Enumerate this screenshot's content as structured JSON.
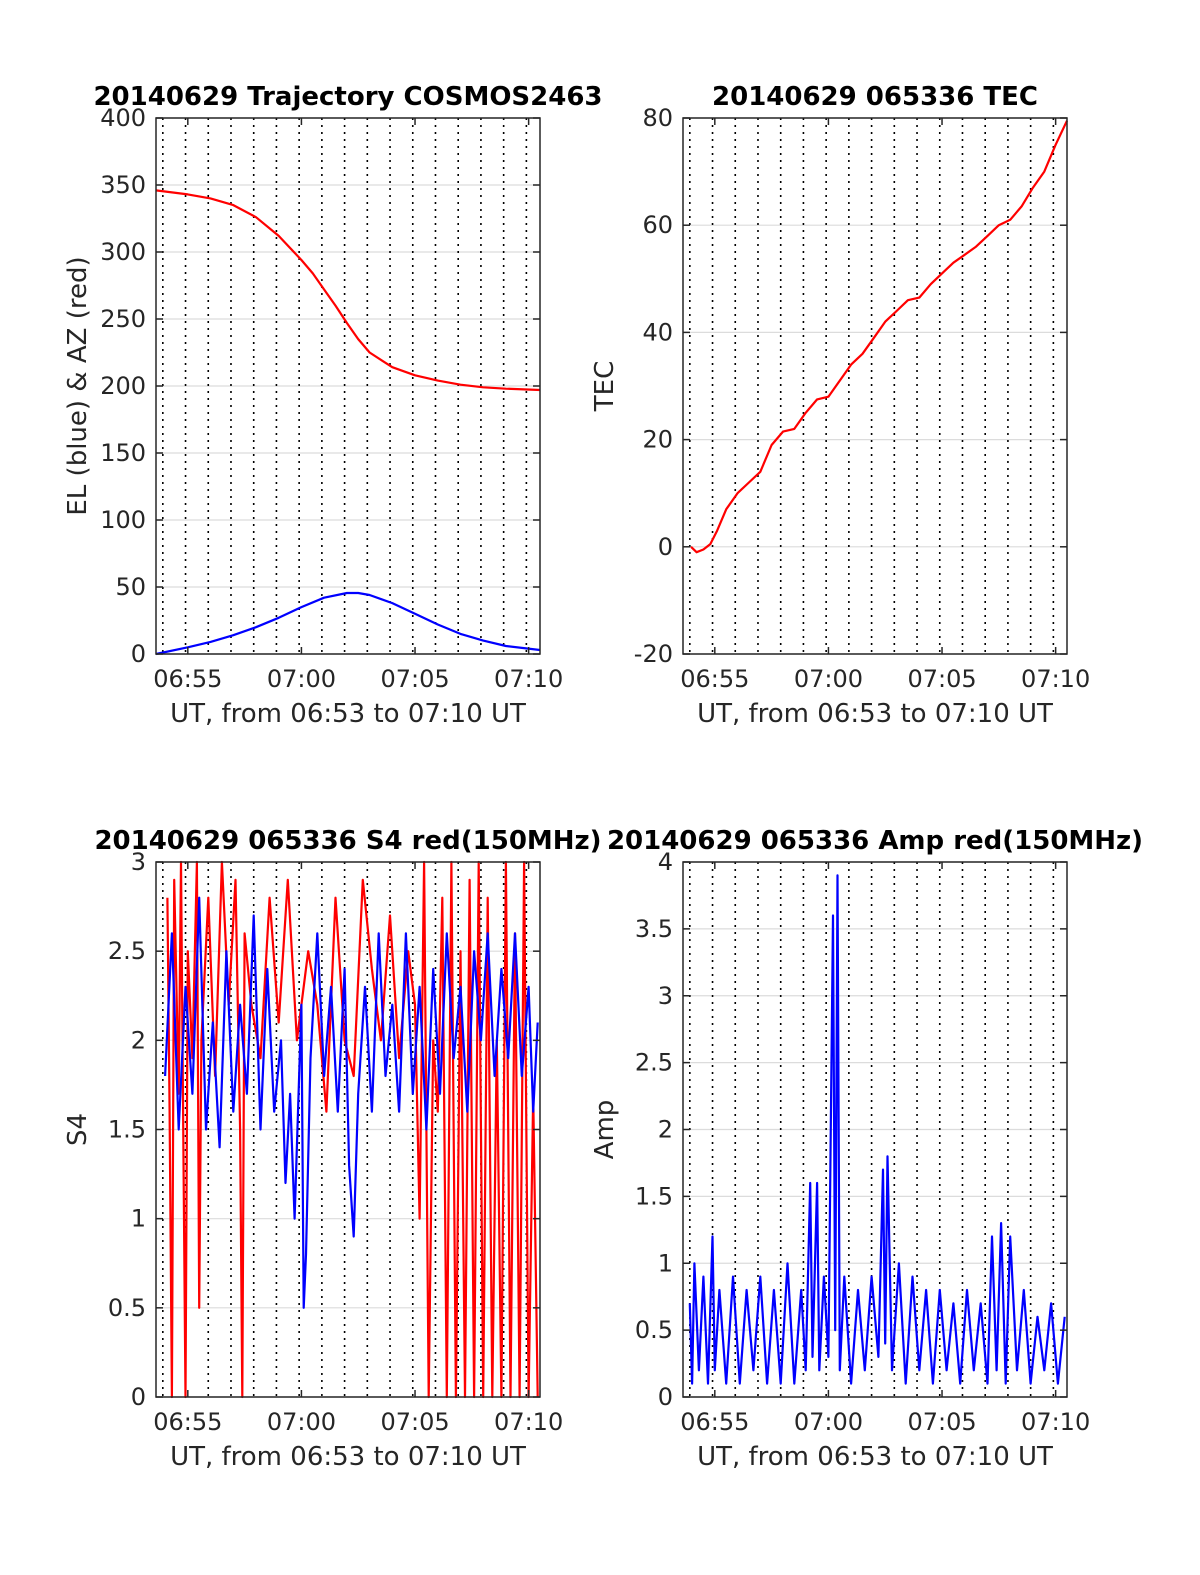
{
  "figure": {
    "background": "#ffffff",
    "grid_color": "#dcdcdc",
    "vline_color": "#000000",
    "axis_color": "#262626"
  },
  "chart_data": [
    {
      "id": "trajectory",
      "type": "line",
      "title": "20140629 Trajectory COSMOS2463",
      "xlabel": "UT, from 06:53 to 07:10 UT",
      "ylabel": "EL (blue) & AZ (red)",
      "xlim": [
        53.6,
        70.5
      ],
      "ylim": [
        0,
        400
      ],
      "xticks": [
        {
          "v": 55,
          "label": "06:55"
        },
        {
          "v": 60,
          "label": "07:00"
        },
        {
          "v": 65,
          "label": "07:05"
        },
        {
          "v": 70,
          "label": "07:10"
        }
      ],
      "yticks": [
        {
          "v": 0,
          "label": "0"
        },
        {
          "v": 50,
          "label": "50"
        },
        {
          "v": 100,
          "label": "100"
        },
        {
          "v": 150,
          "label": "150"
        },
        {
          "v": 200,
          "label": "200"
        },
        {
          "v": 250,
          "label": "250"
        },
        {
          "v": 300,
          "label": "300"
        },
        {
          "v": 350,
          "label": "350"
        },
        {
          "v": 400,
          "label": "400"
        }
      ],
      "grid": true,
      "series": [
        {
          "color": "#ff0000",
          "x": [
            53.6,
            55,
            56,
            57,
            58,
            59,
            60,
            60.5,
            61,
            61.5,
            62,
            62.5,
            63,
            64,
            65,
            66,
            67,
            68,
            69,
            70.5
          ],
          "y": [
            346,
            343,
            340,
            335,
            326,
            312,
            294,
            284,
            272,
            260,
            247,
            235,
            225,
            214,
            208,
            204,
            201,
            199,
            198,
            197
          ]
        },
        {
          "color": "#0000ff",
          "x": [
            53.6,
            55,
            56,
            57,
            58,
            59,
            60,
            61,
            62,
            62.5,
            63,
            64,
            65,
            66,
            67,
            68,
            69,
            70.5
          ],
          "y": [
            0,
            5,
            9,
            14,
            20,
            27,
            35,
            42,
            45.5,
            45.5,
            44,
            38,
            30,
            22,
            15,
            10,
            6,
            3
          ]
        }
      ]
    },
    {
      "id": "tec",
      "type": "line",
      "title": "20140629 065336 TEC",
      "xlabel": "UT, from 06:53 to 07:10 UT",
      "ylabel": "TEC",
      "xlim": [
        53.6,
        70.5
      ],
      "ylim": [
        -20,
        80
      ],
      "xticks": [
        {
          "v": 55,
          "label": "06:55"
        },
        {
          "v": 60,
          "label": "07:00"
        },
        {
          "v": 65,
          "label": "07:05"
        },
        {
          "v": 70,
          "label": "07:10"
        }
      ],
      "yticks": [
        {
          "v": -20,
          "label": "-20"
        },
        {
          "v": 0,
          "label": "0"
        },
        {
          "v": 20,
          "label": "20"
        },
        {
          "v": 40,
          "label": "40"
        },
        {
          "v": 60,
          "label": "60"
        },
        {
          "v": 80,
          "label": "80"
        }
      ],
      "grid": true,
      "series": [
        {
          "color": "#ff0000",
          "x": [
            53.95,
            54.2,
            54.5,
            54.8,
            55.1,
            55.5,
            56,
            56.5,
            57,
            57.5,
            58,
            58.5,
            59,
            59.5,
            60,
            60.5,
            61,
            61.5,
            62,
            62.5,
            63,
            63.5,
            64,
            64.5,
            65,
            65.5,
            66,
            66.5,
            67,
            67.5,
            68,
            68.5,
            69,
            69.5,
            70,
            70.5
          ],
          "y": [
            0,
            -1,
            -0.5,
            0.5,
            3,
            7,
            10,
            12,
            14,
            19,
            21.5,
            22,
            25,
            27.5,
            28,
            31,
            34,
            36,
            39,
            42,
            44,
            46,
            46.5,
            49,
            51,
            53,
            54.5,
            56,
            58,
            60,
            61,
            63.5,
            67,
            70,
            75,
            79.5
          ]
        }
      ]
    },
    {
      "id": "s4",
      "type": "line",
      "title": "20140629 065336 S4 red(150MHz)",
      "xlabel": "UT, from 06:53 to 07:10 UT",
      "ylabel": "S4",
      "xlim": [
        53.6,
        70.5
      ],
      "ylim": [
        0,
        3
      ],
      "xticks": [
        {
          "v": 55,
          "label": "06:55"
        },
        {
          "v": 60,
          "label": "07:00"
        },
        {
          "v": 65,
          "label": "07:05"
        },
        {
          "v": 70,
          "label": "07:10"
        }
      ],
      "yticks": [
        {
          "v": 0,
          "label": "0"
        },
        {
          "v": 0.5,
          "label": "0.5"
        },
        {
          "v": 1,
          "label": "1"
        },
        {
          "v": 1.5,
          "label": "1.5"
        },
        {
          "v": 2,
          "label": "2"
        },
        {
          "v": 2.5,
          "label": "2.5"
        },
        {
          "v": 3,
          "label": "3"
        }
      ],
      "grid": true,
      "series": [
        {
          "color": "#ff0000",
          "x": [
            54.1,
            54.2,
            54.3,
            54.4,
            54.6,
            54.7,
            54.9,
            55.0,
            55.2,
            55.4,
            55.5,
            55.6,
            55.9,
            56.2,
            56.5,
            56.8,
            57.1,
            57.3,
            57.4,
            57.5,
            57.8,
            58.2,
            58.6,
            59.0,
            59.4,
            59.8,
            60.3,
            60.7,
            61.1,
            61.5,
            61.9,
            62.3,
            62.7,
            63.1,
            63.5,
            63.9,
            64.3,
            64.7,
            65.0,
            65.2,
            65.4,
            65.6,
            65.8,
            66.0,
            66.2,
            66.4,
            66.6,
            66.8,
            67.0,
            67.2,
            67.4,
            67.6,
            67.8,
            68.0,
            68.2,
            68.4,
            68.6,
            68.8,
            69.0,
            69.2,
            69.4,
            69.6,
            69.8,
            70.0,
            70.2,
            70.4
          ],
          "y": [
            2.8,
            1.6,
            0,
            2.9,
            1.7,
            3.0,
            0,
            2.5,
            1.9,
            3.0,
            0.5,
            2.0,
            2.8,
            1.8,
            3.0,
            2.2,
            2.9,
            1.5,
            0,
            2.6,
            2.2,
            1.9,
            2.8,
            2.1,
            2.9,
            2.0,
            2.5,
            2.2,
            1.6,
            2.8,
            2.0,
            1.8,
            2.9,
            2.4,
            2.0,
            2.7,
            1.9,
            2.5,
            2.2,
            1.0,
            3.0,
            0,
            2.0,
            1.6,
            2.8,
            0,
            3.0,
            0,
            2.5,
            0,
            2.9,
            0,
            3.0,
            0,
            2.8,
            0,
            2.0,
            0,
            3.0,
            0,
            2.6,
            0,
            3.0,
            0,
            1.7,
            0
          ]
        },
        {
          "color": "#0000ff",
          "x": [
            54.0,
            54.3,
            54.6,
            54.9,
            55.2,
            55.5,
            55.8,
            56.1,
            56.4,
            56.7,
            57.0,
            57.3,
            57.6,
            57.9,
            58.2,
            58.5,
            58.8,
            59.1,
            59.3,
            59.5,
            59.7,
            60.0,
            60.1,
            60.2,
            60.4,
            60.7,
            61.0,
            61.3,
            61.6,
            61.9,
            62.1,
            62.3,
            62.5,
            62.8,
            63.1,
            63.4,
            63.7,
            64.0,
            64.3,
            64.6,
            64.9,
            65.2,
            65.5,
            65.8,
            66.1,
            66.4,
            66.7,
            67.0,
            67.3,
            67.6,
            67.9,
            68.2,
            68.5,
            68.8,
            69.1,
            69.4,
            69.7,
            70.0,
            70.2,
            70.4
          ],
          "y": [
            1.8,
            2.6,
            1.5,
            2.3,
            1.7,
            2.8,
            1.5,
            2.1,
            1.4,
            2.5,
            1.6,
            2.2,
            1.7,
            2.7,
            1.5,
            2.4,
            1.6,
            2.0,
            1.2,
            1.7,
            1.0,
            2.2,
            0.5,
            0.8,
            1.9,
            2.6,
            1.8,
            2.3,
            1.6,
            2.4,
            1.3,
            0.9,
            1.7,
            2.3,
            1.6,
            2.6,
            1.8,
            2.2,
            1.6,
            2.6,
            1.7,
            2.3,
            1.5,
            2.4,
            1.7,
            2.6,
            1.9,
            2.3,
            1.6,
            2.5,
            2.0,
            2.6,
            1.8,
            2.4,
            1.9,
            2.6,
            1.8,
            2.3,
            1.6,
            2.1
          ]
        }
      ]
    },
    {
      "id": "amp",
      "type": "line",
      "title": "20140629 065336 Amp red(150MHz)",
      "xlabel": "UT, from 06:53 to 07:10 UT",
      "ylabel": "Amp",
      "xlim": [
        53.6,
        70.5
      ],
      "ylim": [
        0,
        4
      ],
      "xticks": [
        {
          "v": 55,
          "label": "06:55"
        },
        {
          "v": 60,
          "label": "07:00"
        },
        {
          "v": 65,
          "label": "07:05"
        },
        {
          "v": 70,
          "label": "07:10"
        }
      ],
      "yticks": [
        {
          "v": 0,
          "label": "0"
        },
        {
          "v": 0.5,
          "label": "0.5"
        },
        {
          "v": 1,
          "label": "1"
        },
        {
          "v": 1.5,
          "label": "1.5"
        },
        {
          "v": 2,
          "label": "2"
        },
        {
          "v": 2.5,
          "label": "2.5"
        },
        {
          "v": 3,
          "label": "3"
        },
        {
          "v": 3.5,
          "label": "3.5"
        },
        {
          "v": 4,
          "label": "4"
        }
      ],
      "grid": true,
      "series": [
        {
          "color": "#0000ff",
          "x": [
            53.9,
            54.0,
            54.1,
            54.3,
            54.5,
            54.7,
            54.9,
            55.0,
            55.2,
            55.5,
            55.8,
            56.1,
            56.4,
            56.7,
            57.0,
            57.3,
            57.6,
            57.9,
            58.2,
            58.5,
            58.8,
            59.0,
            59.2,
            59.3,
            59.5,
            59.6,
            59.8,
            60.0,
            60.2,
            60.3,
            60.4,
            60.5,
            60.7,
            61.0,
            61.3,
            61.6,
            61.9,
            62.2,
            62.4,
            62.5,
            62.6,
            62.8,
            63.1,
            63.4,
            63.7,
            64.0,
            64.3,
            64.6,
            64.9,
            65.2,
            65.5,
            65.8,
            66.1,
            66.4,
            66.7,
            67.0,
            67.2,
            67.4,
            67.6,
            67.8,
            68.0,
            68.3,
            68.6,
            68.9,
            69.2,
            69.5,
            69.8,
            70.1,
            70.4
          ],
          "y": [
            0.7,
            0.1,
            1.0,
            0.2,
            0.9,
            0.1,
            1.2,
            0.2,
            0.8,
            0.1,
            0.9,
            0.1,
            0.8,
            0.2,
            0.9,
            0.1,
            0.8,
            0.1,
            1.0,
            0.1,
            0.8,
            0.2,
            1.6,
            0.3,
            1.6,
            0.2,
            0.9,
            0.3,
            3.6,
            0.5,
            3.9,
            0.2,
            0.9,
            0.1,
            0.8,
            0.2,
            0.9,
            0.3,
            1.7,
            0.4,
            1.8,
            0.2,
            1.0,
            0.1,
            0.9,
            0.2,
            0.8,
            0.1,
            0.8,
            0.2,
            0.7,
            0.1,
            0.8,
            0.2,
            0.7,
            0.1,
            1.2,
            0.2,
            1.3,
            0.1,
            1.2,
            0.2,
            0.8,
            0.1,
            0.6,
            0.2,
            0.7,
            0.1,
            0.6
          ]
        }
      ]
    }
  ]
}
